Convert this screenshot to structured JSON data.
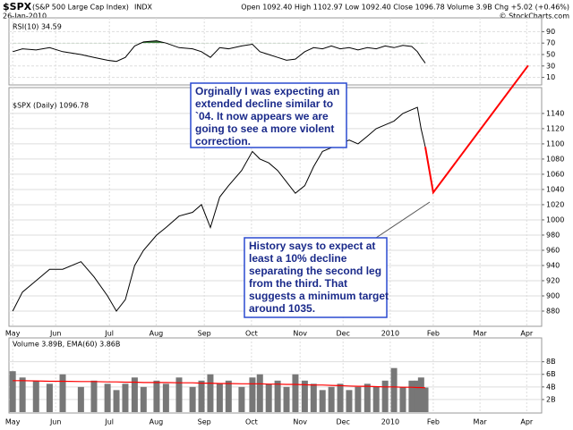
{
  "header": {
    "symbol": "$SPX",
    "name": "(S&P 500 Large Cap Index)",
    "exchange": "INDX",
    "date": "26-Jan-2010",
    "quote": "Open 1092.40 High 1102.97 Low 1092.40 Close 1096.78 Volume 3.9B Chg +5.02 (+0.46%)",
    "copyright": "© StockCharts.com"
  },
  "chart_data": [
    {
      "type": "line",
      "label": "RSI(10) 34.59",
      "color": "#000000",
      "highlight_above": 70,
      "highlight_color": "#3f7f3f",
      "x": [
        0,
        0.21,
        0.5,
        0.79,
        1.07,
        1.46,
        1.74,
        2.03,
        2.22,
        2.41,
        2.61,
        2.8,
        3.08,
        3.28,
        3.56,
        3.85,
        4.04,
        4.23,
        4.43,
        4.62,
        4.9,
        5.13,
        5.29,
        5.48,
        5.67,
        5.86,
        6.05,
        6.25,
        6.44,
        6.63,
        6.82,
        7.01,
        7.2,
        7.39,
        7.59,
        7.78,
        7.97,
        8.16,
        8.35,
        8.54,
        8.66,
        8.74,
        8.83
      ],
      "values": [
        55,
        60,
        58,
        62,
        55,
        50,
        45,
        40,
        38,
        45,
        65,
        72,
        74,
        70,
        62,
        60,
        55,
        45,
        62,
        60,
        65,
        68,
        55,
        50,
        45,
        40,
        42,
        55,
        62,
        60,
        65,
        60,
        62,
        58,
        62,
        60,
        65,
        62,
        66,
        64,
        55,
        45,
        35
      ],
      "xlim": [
        -0.08,
        11.32
      ],
      "ylim": [
        0,
        100
      ],
      "yticks": [
        10,
        30,
        50,
        70,
        90
      ],
      "grid": true
    },
    {
      "type": "line",
      "label": "$SPX (Daily) 1096.78",
      "color": "#000000",
      "x": [
        0,
        0.21,
        0.5,
        0.79,
        1.07,
        1.46,
        1.74,
        2.03,
        2.22,
        2.41,
        2.61,
        2.8,
        3.08,
        3.28,
        3.56,
        3.85,
        4.04,
        4.23,
        4.43,
        4.62,
        4.9,
        5.13,
        5.29,
        5.48,
        5.67,
        5.86,
        6.05,
        6.25,
        6.44,
        6.63,
        6.82,
        7.01,
        7.2,
        7.39,
        7.59,
        7.78,
        7.97,
        8.16,
        8.35,
        8.54,
        8.66,
        8.74,
        8.83
      ],
      "values": [
        880,
        905,
        920,
        935,
        935,
        945,
        925,
        900,
        880,
        895,
        940,
        960,
        980,
        990,
        1005,
        1010,
        1020,
        990,
        1030,
        1045,
        1065,
        1090,
        1080,
        1075,
        1065,
        1050,
        1035,
        1045,
        1070,
        1090,
        1095,
        1100,
        1105,
        1100,
        1110,
        1120,
        1125,
        1130,
        1140,
        1145,
        1148,
        1120,
        1096
      ],
      "projection": {
        "color": "#ff0000",
        "x": [
          8.83,
          9.0,
          11.03
        ],
        "values": [
          1096,
          1036,
          1203
        ]
      },
      "annotations": [
        {
          "lines": [
            "Orginally I was expecting an",
            "extended decline similar to",
            "`04. It now appears we are",
            "going to see a more violent",
            "correction."
          ]
        },
        {
          "lines": [
            "History says to expect at",
            "least a 10% decline",
            "separating the second leg",
            "from the third. That",
            "suggests a minimum target",
            "around 1035."
          ]
        }
      ],
      "xlim": [
        -0.08,
        11.32
      ],
      "ylim": [
        860,
        1174
      ],
      "yticks": [
        880,
        900,
        920,
        940,
        960,
        980,
        1000,
        1020,
        1040,
        1060,
        1080,
        1100,
        1120,
        1140
      ],
      "xticks": [
        {
          "value": 0,
          "label": "May"
        },
        {
          "value": 0.92,
          "label": "Jun"
        },
        {
          "value": 2.07,
          "label": "Jul"
        },
        {
          "value": 3.07,
          "label": "Aug"
        },
        {
          "value": 4.1,
          "label": "Sep"
        },
        {
          "value": 5.11,
          "label": "Oct"
        },
        {
          "value": 6.15,
          "label": "Nov"
        },
        {
          "value": 7.07,
          "label": "Dec"
        },
        {
          "value": 8.08,
          "label": "2010"
        },
        {
          "value": 9.0,
          "label": "Feb"
        },
        {
          "value": 10.0,
          "label": "Mar"
        },
        {
          "value": 11.0,
          "label": "Apr"
        }
      ],
      "grid": true
    },
    {
      "type": "bar",
      "label": "Volume 3.89B, EMA(60) 3.86B",
      "color": "#777777",
      "x": [
        0,
        0.21,
        0.5,
        0.79,
        1.07,
        1.46,
        1.74,
        2.03,
        2.22,
        2.41,
        2.61,
        2.8,
        3.08,
        3.28,
        3.56,
        3.85,
        4.04,
        4.23,
        4.43,
        4.62,
        4.9,
        5.13,
        5.29,
        5.48,
        5.67,
        5.86,
        6.05,
        6.25,
        6.44,
        6.63,
        6.82,
        7.01,
        7.2,
        7.39,
        7.59,
        7.78,
        7.97,
        8.16,
        8.35,
        8.54,
        8.66,
        8.74,
        8.83
      ],
      "values": [
        6.5,
        5.5,
        5,
        4.5,
        6,
        4,
        5,
        4.5,
        3.5,
        4.5,
        5.5,
        4,
        5,
        4.5,
        5.5,
        4,
        5,
        6,
        4.5,
        5,
        4,
        5.5,
        6,
        4.5,
        5,
        4,
        6,
        5,
        4.5,
        3.5,
        4,
        4.5,
        3.5,
        4,
        4.5,
        4,
        5,
        7,
        4,
        5,
        5,
        5.5,
        3.9
      ],
      "ema": {
        "color": "#ff0000",
        "values": [
          5.0,
          5.0,
          4.95,
          4.9,
          4.9,
          4.85,
          4.85,
          4.8,
          4.8,
          4.75,
          4.75,
          4.7,
          4.7,
          4.7,
          4.65,
          4.65,
          4.6,
          4.6,
          4.55,
          4.55,
          4.5,
          4.5,
          4.5,
          4.45,
          4.45,
          4.4,
          4.4,
          4.35,
          4.3,
          4.3,
          4.25,
          4.2,
          4.15,
          4.1,
          4.1,
          4.05,
          4.0,
          4.0,
          3.95,
          3.95,
          3.9,
          3.9,
          3.86
        ]
      },
      "xlim": [
        -0.08,
        11.32
      ],
      "ylim": [
        0,
        11.5
      ],
      "yticks": [
        {
          "value": 2,
          "label": "2B"
        },
        {
          "value": 4,
          "label": "4B"
        },
        {
          "value": 6,
          "label": "6B"
        },
        {
          "value": 8,
          "label": "8B"
        }
      ],
      "xticks": [
        {
          "value": 0,
          "label": "May"
        },
        {
          "value": 0.92,
          "label": "Jun"
        },
        {
          "value": 2.07,
          "label": "Jul"
        },
        {
          "value": 3.07,
          "label": "Aug"
        },
        {
          "value": 4.1,
          "label": "Sep"
        },
        {
          "value": 5.11,
          "label": "Oct"
        },
        {
          "value": 6.15,
          "label": "Nov"
        },
        {
          "value": 7.07,
          "label": "Dec"
        },
        {
          "value": 8.08,
          "label": "2010"
        },
        {
          "value": 9.0,
          "label": "Feb"
        },
        {
          "value": 10.0,
          "label": "Mar"
        },
        {
          "value": 11.0,
          "label": "Apr"
        }
      ],
      "grid": true
    }
  ]
}
